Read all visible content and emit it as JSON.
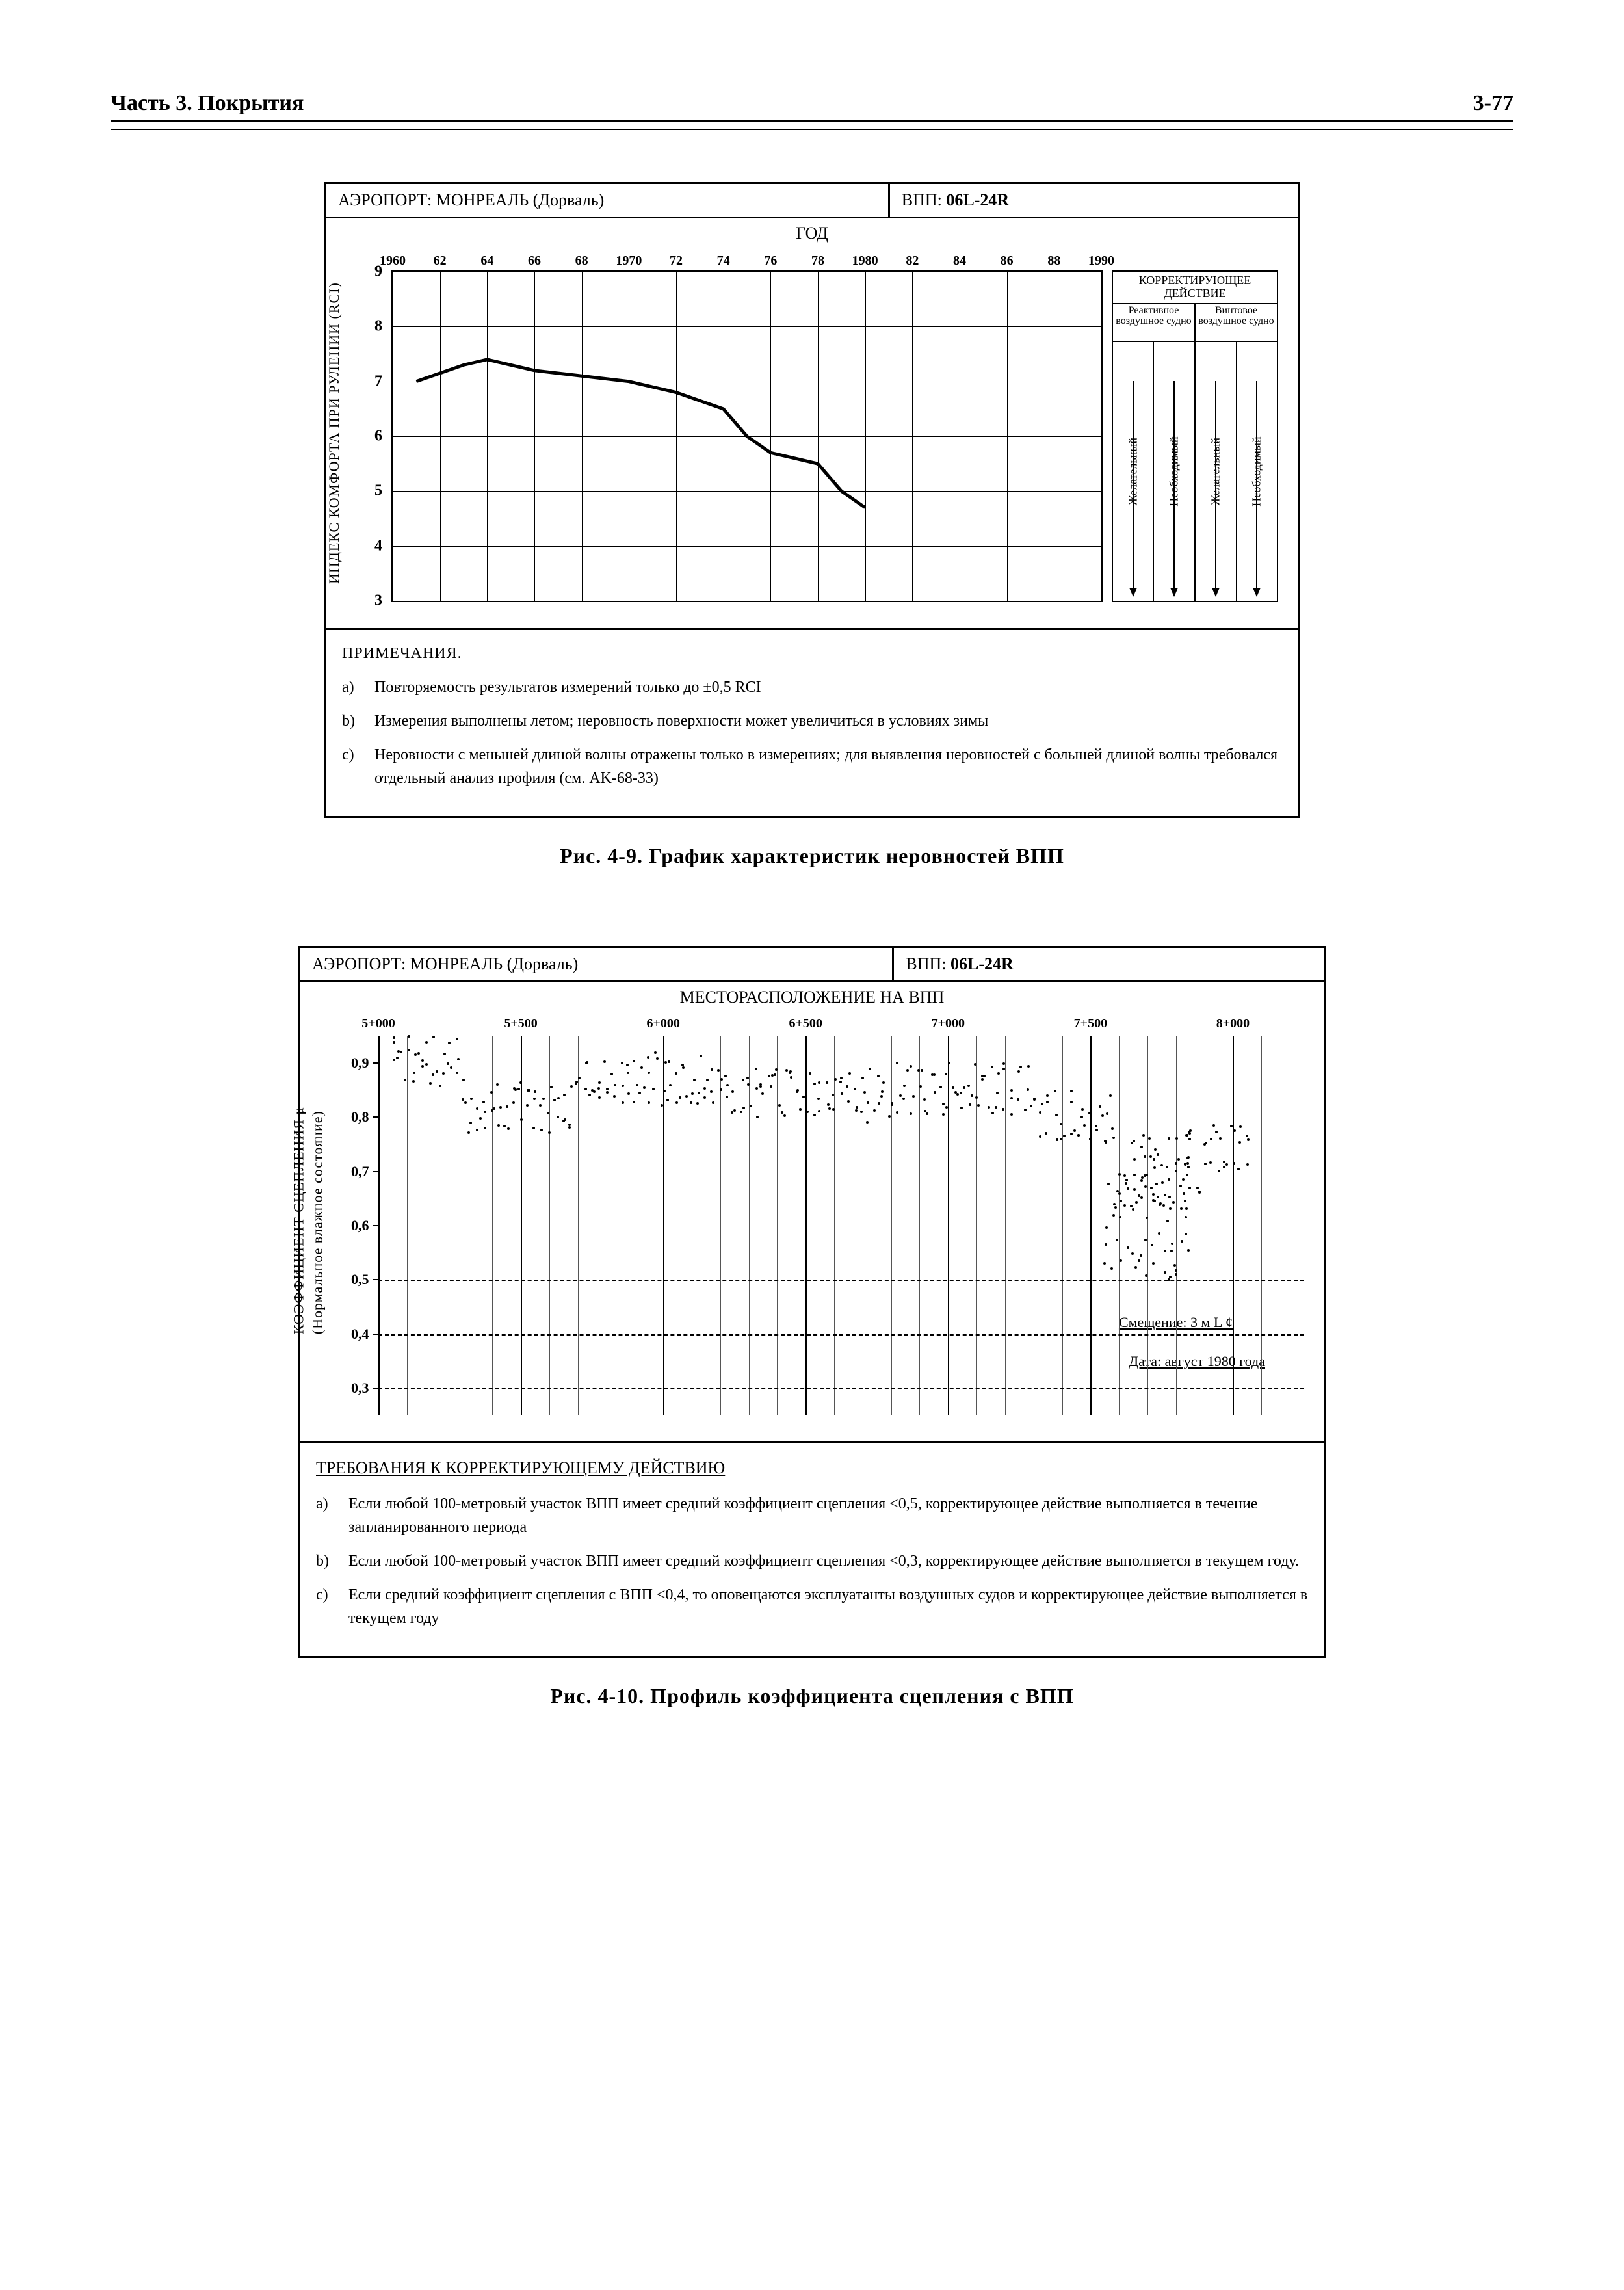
{
  "page": {
    "section_left": "Часть 3.  Покрытия",
    "section_right": "3-77"
  },
  "fig1": {
    "header_airport_label": "АЭРОПОРТ:",
    "header_airport_value": "МОНРЕАЛЬ (Дорваль)",
    "header_runway_label": "ВПП:",
    "header_runway_value": "06L-24R",
    "subheader": "ГОД",
    "ylabel": "ИНДЕКС КОМФОРТА ПРИ РУЛЕНИИ (RCI)",
    "x_ticks": [
      "1960",
      "62",
      "64",
      "66",
      "68",
      "1970",
      "72",
      "74",
      "76",
      "78",
      "1980",
      "82",
      "84",
      "86",
      "88",
      "1990"
    ],
    "y_ticks": [
      "3",
      "4",
      "5",
      "6",
      "7",
      "8",
      "9"
    ],
    "ylim": [
      3,
      9
    ],
    "xlim": [
      1960,
      1990
    ],
    "line_points": [
      [
        1961,
        7.0
      ],
      [
        1963,
        7.3
      ],
      [
        1964,
        7.4
      ],
      [
        1966,
        7.2
      ],
      [
        1968,
        7.1
      ],
      [
        1970,
        7.0
      ],
      [
        1972,
        6.8
      ],
      [
        1974,
        6.5
      ],
      [
        1975,
        6.0
      ],
      [
        1976,
        5.7
      ],
      [
        1977,
        5.6
      ],
      [
        1978,
        5.5
      ],
      [
        1979,
        5.0
      ],
      [
        1980,
        4.7
      ]
    ],
    "right_panel": {
      "top": "КОРРЕКТИРУЮЩЕЕ ДЕЙСТВИЕ",
      "col1_hdr": "Реактивное воздушное судно",
      "col2_hdr": "Винтовое воздушное судно",
      "sub_labels": [
        "Желательный",
        "Необходимый",
        "Желательный",
        "Необходимый"
      ]
    },
    "notes_title": "ПРИМЕЧАНИЯ.",
    "notes": [
      "Повторяемость результатов измерений только до ±0,5 RCI",
      "Измерения выполнены летом; неровность поверхности может увеличиться в условиях зимы",
      "Неровности с меньшей длиной волны отражены только в измерениях; для выявления неровностей с большей длиной волны требовался отдельный анализ профиля (см. AK-68-33)"
    ],
    "caption": "Рис.  4-9.    График  характеристик  неровностей ВПП"
  },
  "fig2": {
    "header_airport_label": "АЭРОПОРТ:",
    "header_airport_value": "МОНРЕАЛЬ (Дорваль)",
    "header_runway_label": "ВПП:",
    "header_runway_value": "06L-24R",
    "subheader": "МЕСТОРАСПОЛОЖЕНИЕ НА ВПП",
    "ylabel": "КОЭФФИЦИЕНТ СЦЕПЛЕНИЯ μ\n(Нормальное влажное состояние)",
    "x_ticks": [
      "5+000",
      "5+500",
      "6+000",
      "6+500",
      "7+000",
      "7+500",
      "8+000"
    ],
    "y_ticks": [
      "0,3",
      "0,4",
      "0,5",
      "0,6",
      "0,7",
      "0,8",
      "0,9"
    ],
    "ylim": [
      0.25,
      0.95
    ],
    "xlim": [
      5000,
      8250
    ],
    "dash_levels": [
      0.3,
      0.4,
      0.5
    ],
    "annot_offset": "Смещение: 3 м L ¢",
    "annot_date": "Дата: август 1980 года",
    "notes_title": "ТРЕБОВАНИЯ К КОРРЕКТИРУЮЩЕМУ ДЕЙСТВИЮ",
    "notes": [
      "Если любой 100-метровый участок ВПП имеет средний коэффициент сцепления <0,5, корректирующее действие выполняется в течение запланированного периода",
      "Если любой 100-метровый участок ВПП имеет средний коэффициент сцепления <0,3, корректирующее действие выполняется в текущем году.",
      "Если средний коэффициент сцепления с ВПП <0,4, то оповещаются эксплуатанты воздушных судов и корректирующее действие выполняется в текущем году"
    ],
    "caption": "Рис.  4-10.    Профиль  коэффициента  сцепления  с  ВПП"
  }
}
